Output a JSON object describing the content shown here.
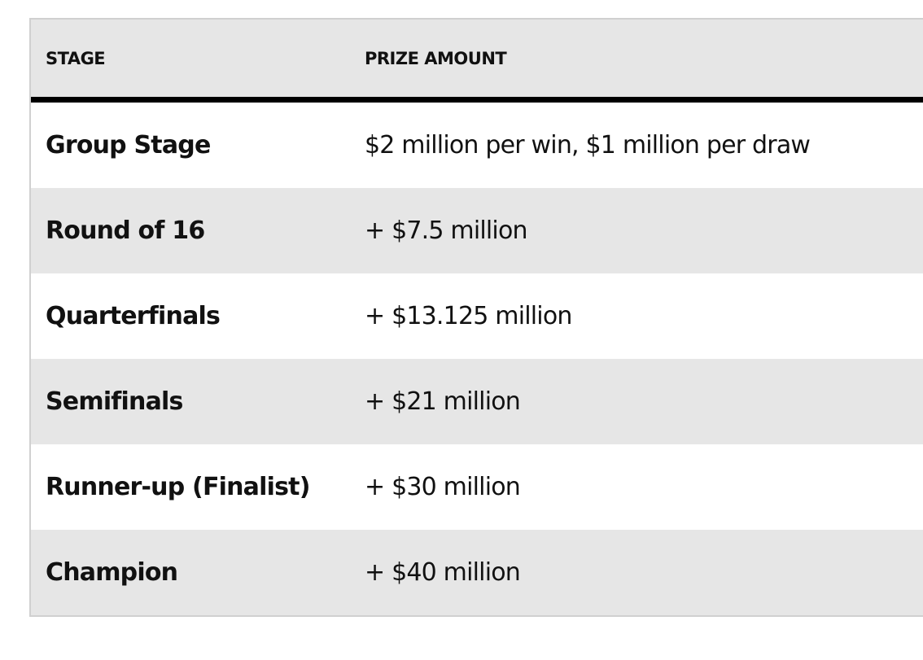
{
  "table": {
    "headers": {
      "stage": "STAGE",
      "prize": "PRIZE AMOUNT"
    },
    "rows": [
      {
        "stage": "Group Stage",
        "prize": "$2 million per win, $1 million per draw"
      },
      {
        "stage": "Round of 16",
        "prize": "+ $7.5 million"
      },
      {
        "stage": "Quarterfinals",
        "prize": "+ $13.125 million"
      },
      {
        "stage": "Semifinals",
        "prize": "+ $21 million"
      },
      {
        "stage": "Runner-up (Finalist)",
        "prize": "+ $30 million"
      },
      {
        "stage": "Champion",
        "prize": "+ $40 million"
      }
    ]
  }
}
